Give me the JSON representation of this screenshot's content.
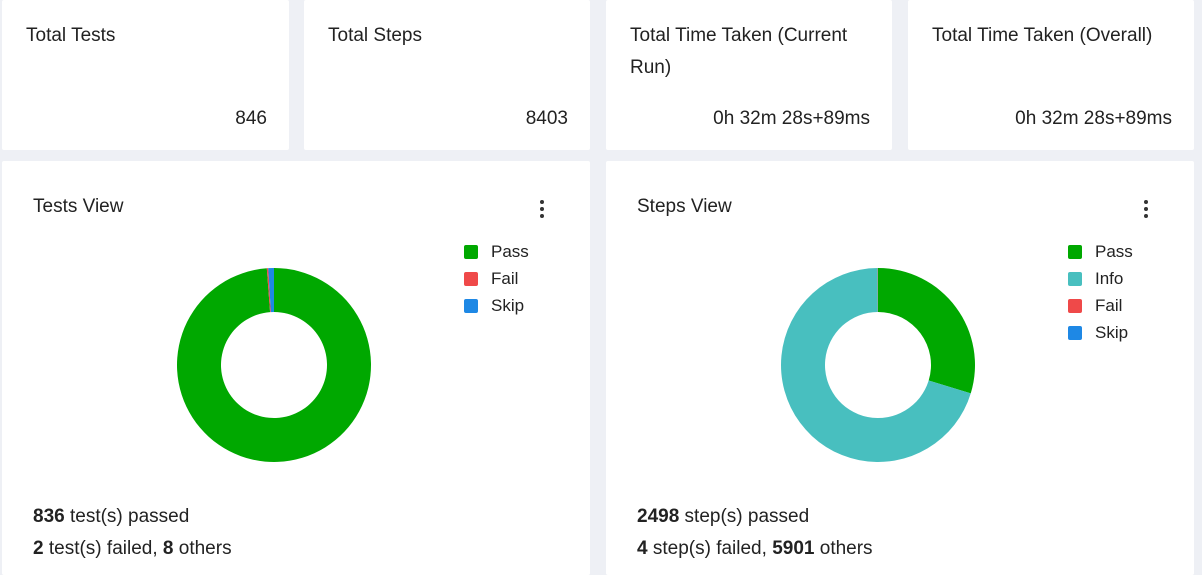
{
  "stats": [
    {
      "title": "Total Tests",
      "value": "846"
    },
    {
      "title": "Total Steps",
      "value": "8403"
    },
    {
      "title": "Total Time Taken (Current Run)",
      "value": "0h 32m 28s+89ms"
    },
    {
      "title": "Total Time Taken (Overall)",
      "value": "0h 32m 28s+89ms"
    }
  ],
  "tests_view": {
    "title": "Tests View",
    "menu_icon": "kebab-menu-icon",
    "legend": [
      {
        "label": "Pass",
        "color": "#00a800"
      },
      {
        "label": "Fail",
        "color": "#ef4949"
      },
      {
        "label": "Skip",
        "color": "#1e88e5"
      }
    ],
    "summary": {
      "passed_count": "836",
      "passed_text": " test(s) passed",
      "failed_count": "2",
      "failed_text": " test(s) failed, ",
      "others_count": "8",
      "others_text": " others"
    }
  },
  "steps_view": {
    "title": "Steps View",
    "menu_icon": "kebab-menu-icon",
    "legend": [
      {
        "label": "Pass",
        "color": "#00a800"
      },
      {
        "label": "Info",
        "color": "#48bfbf"
      },
      {
        "label": "Fail",
        "color": "#ef4949"
      },
      {
        "label": "Skip",
        "color": "#1e88e5"
      }
    ],
    "summary": {
      "passed_count": "2498",
      "passed_text": " step(s) passed",
      "failed_count": "4",
      "failed_text": " step(s) failed, ",
      "others_count": "5901",
      "others_text": " others"
    }
  },
  "chart_data": [
    {
      "type": "pie",
      "title": "Tests View",
      "donut": true,
      "categories": [
        "Pass",
        "Fail",
        "Skip"
      ],
      "values": [
        836,
        2,
        8
      ],
      "colors": [
        "#00a800",
        "#ef4949",
        "#1e88e5"
      ],
      "legend": "top-right"
    },
    {
      "type": "pie",
      "title": "Steps View",
      "donut": true,
      "categories": [
        "Pass",
        "Info",
        "Fail",
        "Skip"
      ],
      "values": [
        2498,
        5901,
        4,
        0
      ],
      "colors": [
        "#00a800",
        "#48bfbf",
        "#ef4949",
        "#1e88e5"
      ],
      "legend": "top-right"
    }
  ]
}
